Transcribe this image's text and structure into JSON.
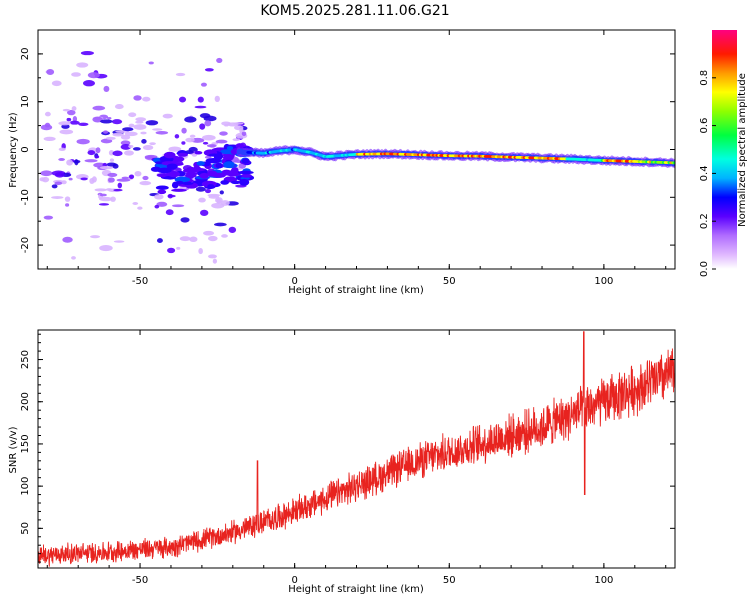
{
  "title": "KOM5.2025.281.11.06.G21",
  "chart_data": [
    {
      "type": "heatmap",
      "title": "KOM5.2025.281.11.06.G21",
      "xlabel": "Height of straight line (km)",
      "ylabel": "Frequency (Hz)",
      "xlim": [
        -83,
        123
      ],
      "ylim": [
        -25,
        25
      ],
      "xticks": [
        -50,
        0,
        50,
        100
      ],
      "yticks": [
        -20,
        -10,
        0,
        10,
        20
      ],
      "colorbar": {
        "label": "Normalized spectral amplitude",
        "range": [
          0,
          1
        ],
        "ticks": [
          0.0,
          0.2,
          0.4,
          0.6,
          0.8
        ]
      },
      "ridge": {
        "x": [
          -18,
          -10,
          -5,
          0,
          5,
          10,
          20,
          30,
          40,
          50,
          60,
          70,
          80,
          90,
          100,
          110,
          123
        ],
        "y": [
          -0.5,
          -0.8,
          -0.3,
          0.0,
          -0.6,
          -1.5,
          -1.0,
          -0.9,
          -1.1,
          -1.3,
          -1.4,
          -1.6,
          -1.8,
          -2.0,
          -2.3,
          -2.5,
          -2.8
        ]
      }
    },
    {
      "type": "line",
      "xlabel": "Height of straight line (km)",
      "ylabel": "SNR (v/v)",
      "xlim": [
        -83,
        123
      ],
      "ylim": [
        3,
        285
      ],
      "xticks": [
        -50,
        0,
        50,
        100
      ],
      "yticks": [
        50,
        100,
        150,
        200,
        250
      ],
      "color": "#e8231f",
      "trend": {
        "x": [
          -83,
          -60,
          -40,
          -20,
          0,
          20,
          40,
          60,
          80,
          90,
          100,
          110,
          123
        ],
        "y": [
          18,
          22,
          28,
          45,
          70,
          100,
          130,
          150,
          170,
          185,
          200,
          215,
          235
        ]
      },
      "spikes": [
        {
          "x": -12,
          "y": 130
        },
        {
          "x": 93.5,
          "y": 283
        },
        {
          "x": 93.8,
          "y": 90
        }
      ]
    }
  ]
}
